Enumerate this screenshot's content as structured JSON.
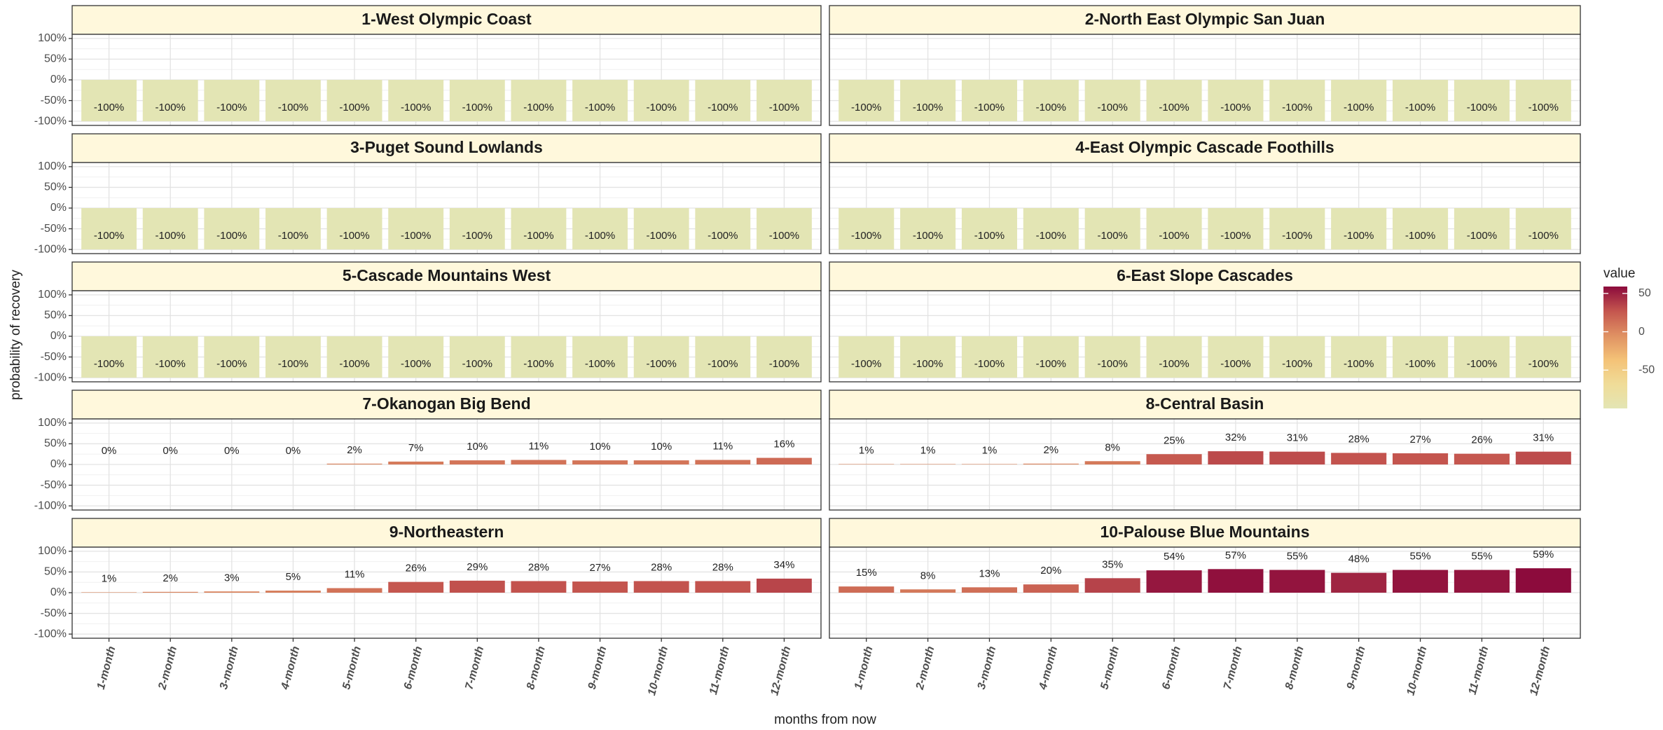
{
  "chart_data": {
    "type": "bar",
    "xlabel": "months from now",
    "ylabel": "probability of recovery",
    "categories": [
      "1-month",
      "2-month",
      "3-month",
      "4-month",
      "5-month",
      "6-month",
      "7-month",
      "8-month",
      "9-month",
      "10-month",
      "11-month",
      "12-month"
    ],
    "ylim": [
      -110,
      110
    ],
    "yticks": [
      {
        "value": -100,
        "label": "-100%"
      },
      {
        "value": -50,
        "label": "-50%"
      },
      {
        "value": 0,
        "label": "0%"
      },
      {
        "value": 50,
        "label": "50%"
      },
      {
        "value": 100,
        "label": "100%"
      }
    ],
    "grid": true,
    "colorbar": {
      "title": "value",
      "lim": [
        -100,
        59
      ],
      "ticks": [
        50,
        0,
        -50
      ],
      "colors": [
        "#e3e5b4",
        "#f0dc98",
        "#f4c277",
        "#df9062",
        "#c4554e",
        "#8c0b3c"
      ]
    },
    "facets": [
      {
        "title": "1-West Olympic Coast",
        "values": [
          -100,
          -100,
          -100,
          -100,
          -100,
          -100,
          -100,
          -100,
          -100,
          -100,
          -100,
          -100
        ],
        "value_labels": [
          "-100%",
          "-100%",
          "-100%",
          "-100%",
          "-100%",
          "-100%",
          "-100%",
          "-100%",
          "-100%",
          "-100%",
          "-100%",
          "-100%"
        ]
      },
      {
        "title": "2-North East Olympic San Juan",
        "values": [
          -100,
          -100,
          -100,
          -100,
          -100,
          -100,
          -100,
          -100,
          -100,
          -100,
          -100,
          -100
        ],
        "value_labels": [
          "-100%",
          "-100%",
          "-100%",
          "-100%",
          "-100%",
          "-100%",
          "-100%",
          "-100%",
          "-100%",
          "-100%",
          "-100%",
          "-100%"
        ]
      },
      {
        "title": "3-Puget Sound Lowlands",
        "values": [
          -100,
          -100,
          -100,
          -100,
          -100,
          -100,
          -100,
          -100,
          -100,
          -100,
          -100,
          -100
        ],
        "value_labels": [
          "-100%",
          "-100%",
          "-100%",
          "-100%",
          "-100%",
          "-100%",
          "-100%",
          "-100%",
          "-100%",
          "-100%",
          "-100%",
          "-100%"
        ]
      },
      {
        "title": "4-East Olympic Cascade Foothills",
        "values": [
          -100,
          -100,
          -100,
          -100,
          -100,
          -100,
          -100,
          -100,
          -100,
          -100,
          -100,
          -100
        ],
        "value_labels": [
          "-100%",
          "-100%",
          "-100%",
          "-100%",
          "-100%",
          "-100%",
          "-100%",
          "-100%",
          "-100%",
          "-100%",
          "-100%",
          "-100%"
        ]
      },
      {
        "title": "5-Cascade Mountains West",
        "values": [
          -100,
          -100,
          -100,
          -100,
          -100,
          -100,
          -100,
          -100,
          -100,
          -100,
          -100,
          -100
        ],
        "value_labels": [
          "-100%",
          "-100%",
          "-100%",
          "-100%",
          "-100%",
          "-100%",
          "-100%",
          "-100%",
          "-100%",
          "-100%",
          "-100%",
          "-100%"
        ]
      },
      {
        "title": "6-East Slope Cascades",
        "values": [
          -100,
          -100,
          -100,
          -100,
          -100,
          -100,
          -100,
          -100,
          -100,
          -100,
          -100,
          -100
        ],
        "value_labels": [
          "-100%",
          "-100%",
          "-100%",
          "-100%",
          "-100%",
          "-100%",
          "-100%",
          "-100%",
          "-100%",
          "-100%",
          "-100%",
          "-100%"
        ]
      },
      {
        "title": "7-Okanogan Big Bend",
        "values": [
          0,
          0,
          0,
          0,
          2,
          7,
          10,
          11,
          10,
          10,
          11,
          16
        ],
        "value_labels": [
          "0%",
          "0%",
          "0%",
          "0%",
          "2%",
          "7%",
          "10%",
          "11%",
          "10%",
          "10%",
          "11%",
          "16%"
        ]
      },
      {
        "title": "8-Central Basin",
        "values": [
          1,
          1,
          1,
          2,
          8,
          25,
          32,
          31,
          28,
          27,
          26,
          31
        ],
        "value_labels": [
          "1%",
          "1%",
          "1%",
          "2%",
          "8%",
          "25%",
          "32%",
          "31%",
          "28%",
          "27%",
          "26%",
          "31%"
        ]
      },
      {
        "title": "9-Northeastern",
        "values": [
          1,
          2,
          3,
          5,
          11,
          26,
          29,
          28,
          27,
          28,
          28,
          34
        ],
        "value_labels": [
          "1%",
          "2%",
          "3%",
          "5%",
          "11%",
          "26%",
          "29%",
          "28%",
          "27%",
          "28%",
          "28%",
          "34%"
        ]
      },
      {
        "title": "10-Palouse Blue Mountains",
        "values": [
          15,
          8,
          13,
          20,
          35,
          54,
          57,
          55,
          48,
          55,
          55,
          59
        ],
        "value_labels": [
          "15%",
          "8%",
          "13%",
          "20%",
          "35%",
          "54%",
          "57%",
          "55%",
          "48%",
          "55%",
          "55%",
          "59%"
        ]
      }
    ]
  }
}
